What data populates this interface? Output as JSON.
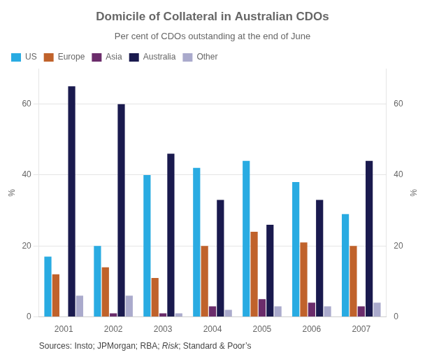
{
  "chart_data": {
    "type": "bar",
    "title": "Domicile of Collateral in Australian CDOs",
    "subtitle": "Per cent of CDOs outstanding at the end of June",
    "source": [
      {
        "text": "Sources: Insto; JPMorgan; RBA; ",
        "style": "normal"
      },
      {
        "text": "Risk",
        "style": "italic"
      },
      {
        "text": "; Standard & Poor’s",
        "style": "normal"
      }
    ],
    "categories": [
      "2001",
      "2002",
      "2003",
      "2004",
      "2005",
      "2006",
      "2007"
    ],
    "series": [
      {
        "name": "US",
        "color": "#29ABE2",
        "values": [
          17,
          20,
          40,
          42,
          44,
          38,
          29
        ]
      },
      {
        "name": "Europe",
        "color": "#C0622B",
        "values": [
          12,
          14,
          11,
          20,
          24,
          21,
          20
        ]
      },
      {
        "name": "Asia",
        "color": "#6B2C6B",
        "values": [
          0,
          1,
          1,
          3,
          5,
          4,
          3
        ]
      },
      {
        "name": "Australia",
        "color": "#1A1A4E",
        "values": [
          65,
          60,
          46,
          33,
          26,
          33,
          44
        ]
      },
      {
        "name": "Other",
        "color": "#AAAACC",
        "values": [
          6,
          6,
          1,
          2,
          3,
          3,
          4
        ]
      }
    ],
    "ylabel": "%",
    "y2label": "%",
    "ylim": [
      0,
      70
    ],
    "yticks": [
      0,
      20,
      40,
      60
    ],
    "y2lim": [
      0,
      70
    ],
    "y2ticks": [
      0,
      20,
      40,
      60
    ],
    "grid": true,
    "legend": "upper left"
  }
}
